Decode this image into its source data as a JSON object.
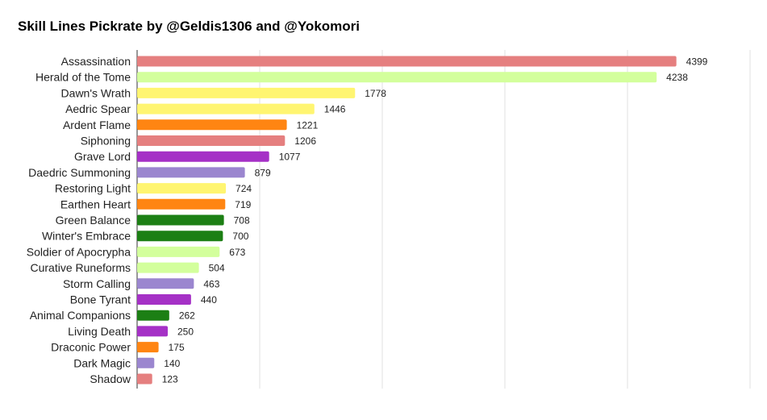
{
  "chart_data": {
    "type": "bar",
    "orientation": "horizontal",
    "title": "Skill Lines Pickrate by @Geldis1306 and @Yokomori",
    "xlabel": "",
    "ylabel": "",
    "xlim": [
      0,
      5000
    ],
    "grid": true,
    "legend": "none",
    "categories": [
      "Assassination",
      "Herald of the Tome",
      "Dawn's Wrath",
      "Aedric Spear",
      "Ardent Flame",
      "Siphoning",
      "Grave Lord",
      "Daedric Summoning",
      "Restoring Light",
      "Earthen Heart",
      "Green Balance",
      "Winter's Embrace",
      "Soldier of Apocrypha",
      "Curative Runeforms",
      "Storm Calling",
      "Bone Tyrant",
      "Animal Companions",
      "Living Death",
      "Draconic Power",
      "Dark Magic",
      "Shadow"
    ],
    "values": [
      4399,
      4238,
      1778,
      1446,
      1221,
      1206,
      1077,
      879,
      724,
      719,
      708,
      700,
      673,
      504,
      463,
      440,
      262,
      250,
      175,
      140,
      123
    ],
    "colors": [
      "#e57f7f",
      "#d3ff9c",
      "#fff571",
      "#fff571",
      "#ff8512",
      "#e57f7f",
      "#a531c6",
      "#9b86cf",
      "#fff571",
      "#ff8512",
      "#1c7f14",
      "#1c7f14",
      "#d3ff9c",
      "#d3ff9c",
      "#9b86cf",
      "#a531c6",
      "#1c7f14",
      "#a531c6",
      "#ff8512",
      "#9b86cf",
      "#e57f7f"
    ]
  }
}
